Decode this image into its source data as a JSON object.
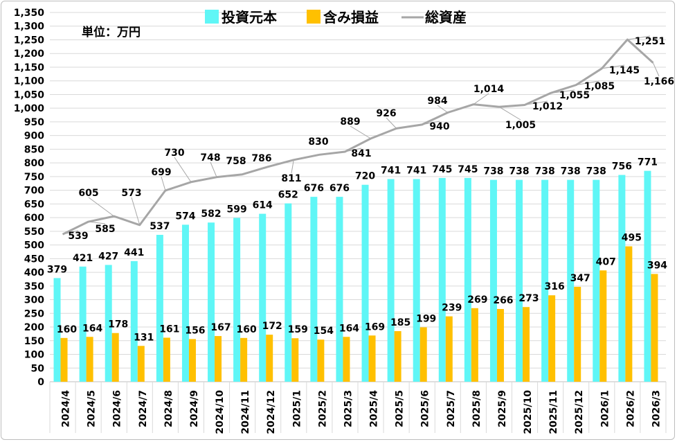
{
  "chart_data": {
    "type": "bar+line",
    "unit_note": "単位：万円",
    "categories": [
      "2024/4",
      "2024/5",
      "2024/6",
      "2024/7",
      "2024/8",
      "2024/9",
      "2024/10",
      "2024/11",
      "2024/12",
      "2025/1",
      "2025/2",
      "2025/3",
      "2025/4",
      "2025/5",
      "2025/6",
      "2025/7",
      "2025/8",
      "2025/9",
      "2025/10",
      "2025/11",
      "2025/12",
      "2026/1",
      "2026/2",
      "2026/3"
    ],
    "series": [
      {
        "name": "投資元本",
        "type": "bar",
        "color": "#5ff6f6",
        "values": [
          379,
          421,
          427,
          441,
          537,
          574,
          582,
          599,
          614,
          652,
          676,
          676,
          720,
          741,
          741,
          745,
          745,
          738,
          738,
          738,
          738,
          738,
          756,
          771
        ],
        "labels": [
          "379",
          "421",
          "427",
          "441",
          "537",
          "574",
          "582",
          "599",
          "614",
          "652",
          "676",
          "676",
          "720",
          "741",
          "741",
          "745",
          "745",
          "738",
          "738",
          "738",
          "738",
          "738",
          "756",
          "771"
        ]
      },
      {
        "name": "含み損益",
        "type": "bar",
        "color": "#ffc000",
        "values": [
          160,
          164,
          178,
          131,
          161,
          156,
          167,
          160,
          172,
          159,
          154,
          164,
          169,
          185,
          199,
          239,
          269,
          266,
          273,
          316,
          347,
          407,
          495,
          394
        ],
        "labels": [
          "160",
          "164",
          "178",
          "131",
          "161",
          "156",
          "167",
          "160",
          "172",
          "159",
          "154",
          "164",
          "169",
          "185",
          "199",
          "239",
          "269",
          "266",
          "273",
          "316",
          "347",
          "407",
          "495",
          "394"
        ]
      },
      {
        "name": "総資産",
        "type": "line",
        "color": "#a6a6a6",
        "values": [
          539,
          585,
          605,
          573,
          699,
          730,
          748,
          758,
          786,
          811,
          830,
          841,
          889,
          926,
          940,
          984,
          1014,
          1005,
          1012,
          1055,
          1085,
          1145,
          1251,
          1166
        ],
        "labels": [
          "539",
          "585",
          "605",
          "573",
          "699",
          "730",
          "748",
          "758",
          "786",
          "811",
          "830",
          "841",
          "889",
          "926",
          "940",
          "984",
          "1,014",
          "1,005",
          "1,012",
          "1,055",
          "1,085",
          "1,145",
          "1,251",
          "1,166"
        ]
      }
    ],
    "ylim": [
      0,
      1350
    ],
    "yticks": [
      "0",
      "50",
      "100",
      "150",
      "200",
      "250",
      "300",
      "350",
      "400",
      "450",
      "500",
      "550",
      "600",
      "650",
      "700",
      "750",
      "800",
      "850",
      "900",
      "950",
      "1,000",
      "1,050",
      "1,100",
      "1,150",
      "1,200",
      "1,250",
      "1,300",
      "1,350"
    ],
    "grid": true,
    "legend": "top"
  }
}
